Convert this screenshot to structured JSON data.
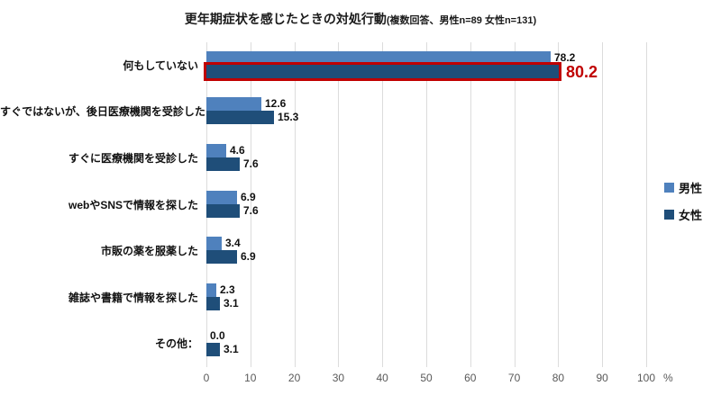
{
  "title": {
    "main": "更年期症状を感じたときの対処行動",
    "sub": "(複数回答、男性n=89 女性n=131)"
  },
  "chart_data": {
    "type": "bar",
    "orientation": "horizontal",
    "title": "更年期症状を感じたときの対処行動(複数回答、男性n=89 女性n=131)",
    "categories": [
      "何もしていない",
      "すぐではないが、後日医療機関を受診した",
      "すぐに医療機関を受診した",
      "webやSNSで情報を探した",
      "市販の薬を服薬した",
      "雑誌や書籍で情報を探した",
      "その他："
    ],
    "series": [
      {
        "name": "男性",
        "color": "#4F81BD",
        "values": [
          78.2,
          12.6,
          4.6,
          6.9,
          3.4,
          2.3,
          0.0
        ]
      },
      {
        "name": "女性",
        "color": "#1F4E79",
        "values": [
          80.2,
          15.3,
          7.6,
          7.6,
          6.9,
          3.1,
          3.1
        ]
      }
    ],
    "highlight": {
      "series_name": "女性",
      "category_index": 0,
      "border_color": "#C00000",
      "label_color": "#C00000"
    },
    "x_ticks": [
      0,
      10,
      20,
      30,
      40,
      50,
      60,
      70,
      80,
      90,
      100
    ],
    "x_unit": "%",
    "xlim": [
      0,
      100
    ],
    "grid": true,
    "legend_position": "right",
    "value_label_decimals": 1
  },
  "legend": {
    "items": [
      {
        "label": "男性",
        "color": "#4F81BD"
      },
      {
        "label": "女性",
        "color": "#1F4E79"
      }
    ]
  },
  "colors": {
    "male_bar": "#4F81BD",
    "female_bar": "#1F4E79",
    "highlight_red": "#C00000",
    "gridline": "#dcdcdc",
    "axis_text": "#595959"
  }
}
